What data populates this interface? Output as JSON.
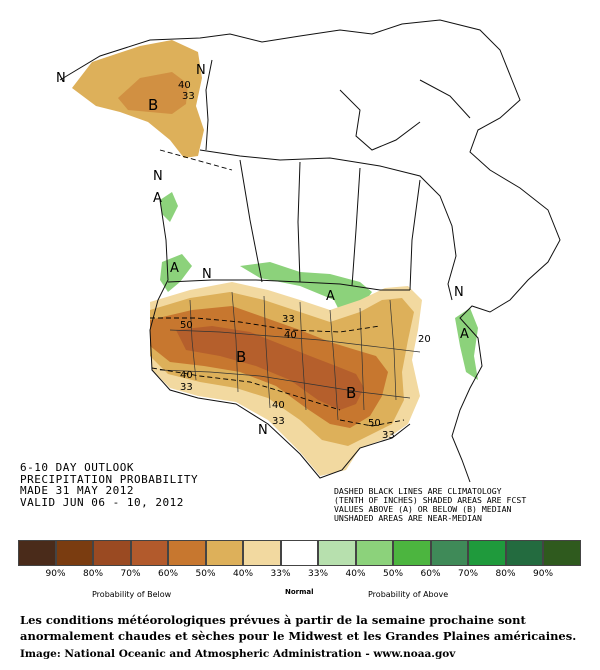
{
  "outlook": {
    "line1": "6-10 DAY OUTLOOK",
    "line2": "PRECIPITATION PROBABILITY",
    "line3": "MADE  31 MAY 2012",
    "line4": "VALID  JUN 06 - 10, 2012"
  },
  "note": {
    "line1": "DASHED BLACK LINES ARE CLIMATOLOGY",
    "line2": "(TENTH OF INCHES) SHADED AREAS ARE FCST",
    "line3": "VALUES ABOVE (A) OR BELOW (B) MEDIAN",
    "line4": "UNSHADED AREAS ARE NEAR-MEDIAN"
  },
  "map_labels": {
    "n_alaska_west": "N",
    "n_alaska_east": "N",
    "b_alaska": "B",
    "c40_alaska": "40",
    "c33_alaska": "33",
    "n_pnw": "N",
    "a_pnw": "A",
    "a_wa": "A",
    "n_wa": "N",
    "b_west": "B",
    "b_south": "B",
    "c50_west": "50",
    "c40_west": "40",
    "c33_west": "33",
    "c33_central": "33",
    "c40_central": "40",
    "c40_south": "40",
    "c33_south": "33",
    "n_southwest": "N",
    "a_greatlakes": "A",
    "n_northeast": "N",
    "a_northeast": "A",
    "c20_east": "20",
    "c50_gulf": "50",
    "c33_gulf": "33"
  },
  "legend": {
    "colors": [
      "#4a2b1a",
      "#7a3c10",
      "#9a4a22",
      "#b25a2c",
      "#c7772f",
      "#ddb05a",
      "#f2d9a0",
      "#ffffff",
      "#b7e0ae",
      "#8cd27b",
      "#4cb53f",
      "#3f8a58",
      "#1f9a3c",
      "#236b3f",
      "#2f5a1e"
    ],
    "left_pcts": [
      "90%",
      "80%",
      "70%",
      "60%",
      "50%",
      "40%",
      "33%"
    ],
    "right_pcts": [
      "33%",
      "40%",
      "50%",
      "60%",
      "70%",
      "80%",
      "90%"
    ],
    "below_label": "Probability of Below",
    "normal_label": "Normal",
    "above_label": "Probability of Above"
  },
  "caption": "Les conditions météorologiques prévues à partir de la semaine prochaine sont anormalement chaudes et sèches pour le Midwest et les Grandes Plaines américaines.",
  "credit": "Image: National Oceanic and Atmospheric Administration - www.noaa.gov"
}
